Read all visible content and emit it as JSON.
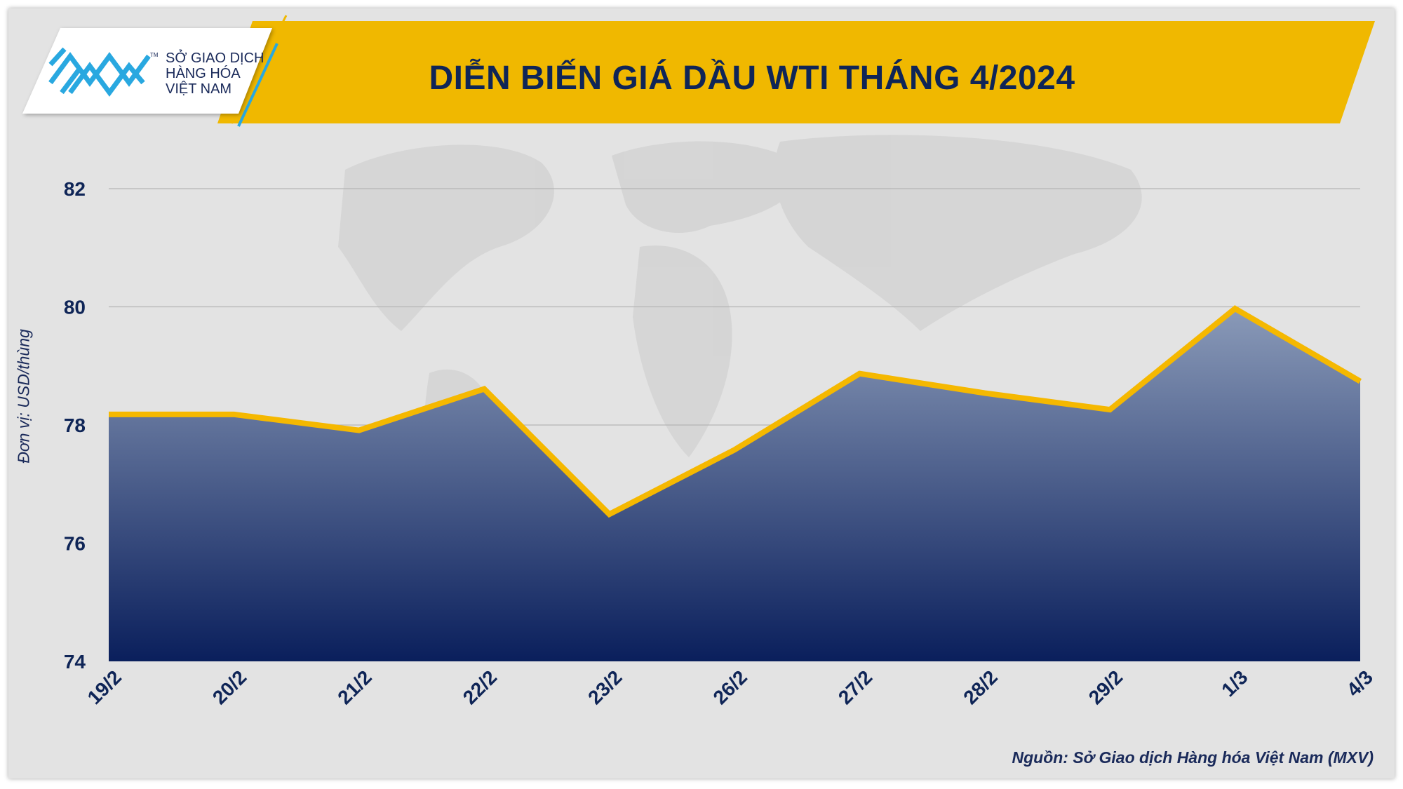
{
  "header": {
    "title": "DIỄN BIẾN GIÁ DẦU WTI THÁNG 4/2024",
    "logo": {
      "line1": "SỞ GIAO DỊCH",
      "line2": "HÀNG HÓA",
      "line3": "VIỆT NAM",
      "tm": "TM"
    }
  },
  "chart_data": {
    "type": "area",
    "title": "DIỄN BIẾN GIÁ DẦU WTI THÁNG 4/2024",
    "xlabel": "",
    "ylabel": "Đơn vị: USD/thùng",
    "categories": [
      "19/2",
      "20/2",
      "21/2",
      "22/2",
      "23/2",
      "26/2",
      "27/2",
      "28/2",
      "29/2",
      "1/3",
      "4/3"
    ],
    "values": [
      78.18,
      78.18,
      77.91,
      78.61,
      76.49,
      77.58,
      78.87,
      78.54,
      78.26,
      79.97,
      78.74
    ],
    "ylim": [
      74,
      82
    ],
    "yticks": [
      "74",
      "76",
      "78",
      "80",
      "82"
    ],
    "grid": true,
    "legend": "none",
    "colors": {
      "line": "#f5b800",
      "fill_top": "#8a9ab8",
      "fill_bottom": "#0a1f5c",
      "grid": "#b5b5b5",
      "text": "#0f2557",
      "banner": "#f0b800"
    }
  },
  "footer": {
    "source": "Nguồn: Sở Giao dịch Hàng hóa Việt Nam (MXV)"
  }
}
